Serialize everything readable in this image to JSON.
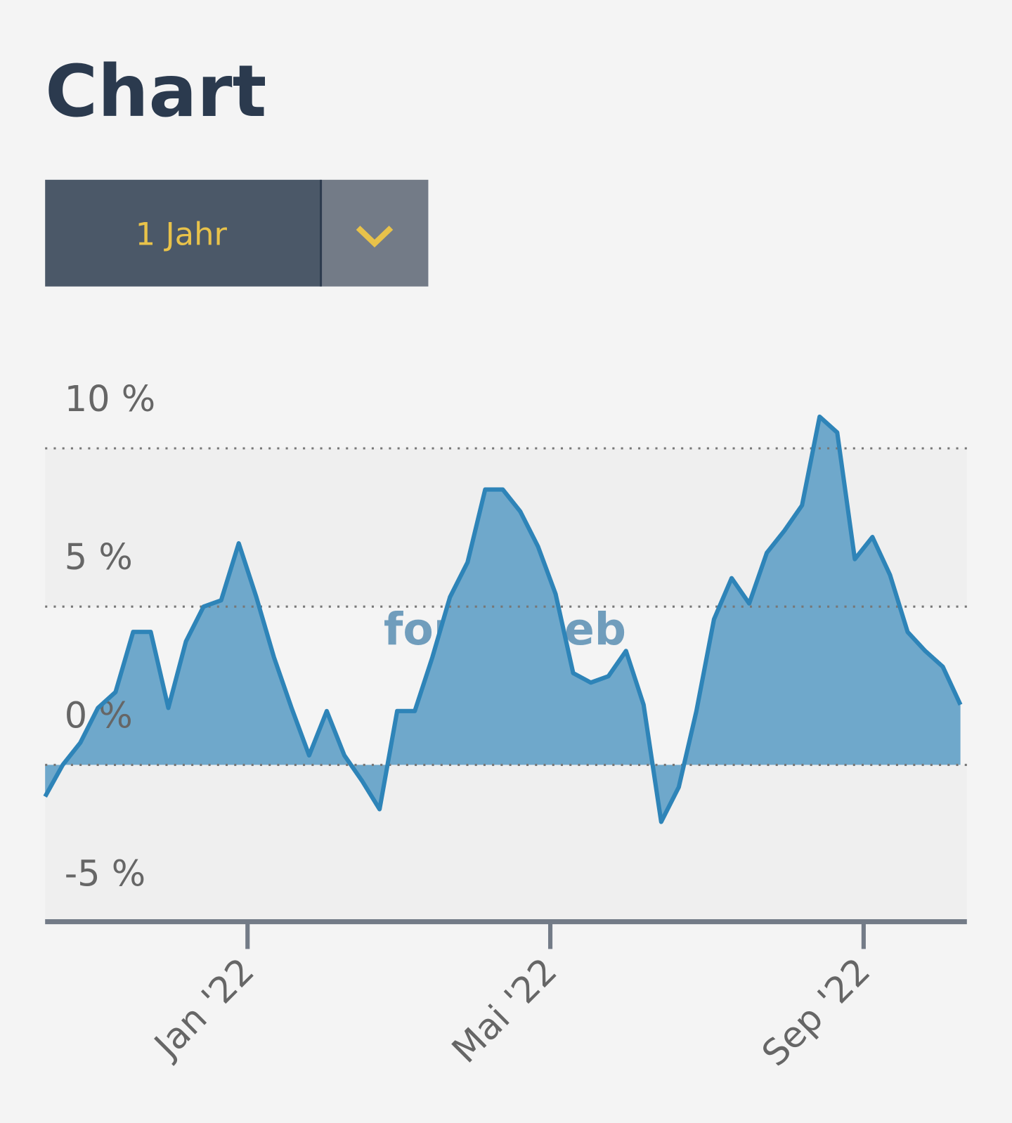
{
  "header": {
    "title": "Chart"
  },
  "period_select": {
    "label": "1 Jahr"
  },
  "chart_data": {
    "type": "area",
    "watermark": "fondsweb",
    "x": [
      0,
      1,
      2,
      3,
      4,
      5,
      6,
      7,
      8,
      9,
      10,
      11,
      12,
      13,
      14,
      15,
      16,
      17,
      18,
      19,
      20,
      21,
      22,
      23,
      24,
      25,
      26,
      27,
      28,
      29,
      30,
      31,
      32,
      33,
      34,
      35,
      36,
      37,
      38,
      39,
      40,
      41,
      42,
      43,
      44,
      45,
      46,
      47,
      48,
      49,
      50,
      51,
      52
    ],
    "values": [
      -1.0,
      0.0,
      0.7,
      1.8,
      2.3,
      4.2,
      4.2,
      1.8,
      3.9,
      5.0,
      5.2,
      7.0,
      5.3,
      3.4,
      1.8,
      0.3,
      1.7,
      0.3,
      -0.5,
      -1.4,
      1.7,
      1.7,
      3.4,
      5.3,
      6.4,
      8.7,
      8.7,
      8.0,
      6.9,
      5.4,
      2.9,
      2.6,
      2.8,
      3.6,
      1.9,
      -1.8,
      -0.7,
      1.7,
      4.6,
      5.9,
      5.1,
      6.7,
      7.4,
      8.2,
      11.0,
      10.5,
      6.5,
      7.2,
      6.0,
      4.2,
      3.6,
      3.1,
      1.9
    ],
    "color": "#2e84b8",
    "fill": "#6fa8cb",
    "xlim": [
      0,
      52
    ],
    "xticks": [
      {
        "value": 11.5,
        "label": "Jan '22"
      },
      {
        "value": 28.7,
        "label": "Mai '22"
      },
      {
        "value": 46.5,
        "label": "Sep '22"
      }
    ],
    "ylim": [
      -5,
      12
    ],
    "yticks": [
      {
        "value": -5,
        "label": "-5 %"
      },
      {
        "value": 0,
        "label": "0 %"
      },
      {
        "value": 5,
        "label": "5 %"
      },
      {
        "value": 10,
        "label": "10 %"
      }
    ],
    "grid": true
  }
}
